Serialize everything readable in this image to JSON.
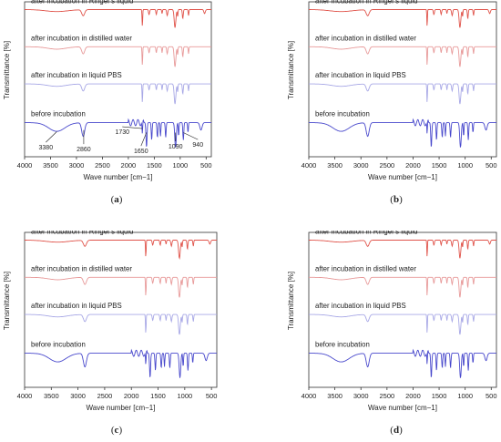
{
  "colors": {
    "ringer": "#e0534a",
    "water": "#e89a9a",
    "pbs": "#a8a8e6",
    "before": "#4848cc",
    "axis": "#333333",
    "text": "#222222"
  },
  "chart_data": [
    {
      "type": "line",
      "panel": "a",
      "caption": "(a)",
      "xlabel": "Wave number [cm−1]",
      "ylabel": "Transmittance [%]",
      "xlim": [
        4000,
        400
      ],
      "x_reversed": true,
      "xticks": [
        "4000",
        "3500",
        "3000",
        "2500",
        "2000",
        "1500",
        "1000",
        "500"
      ],
      "series": [
        {
          "name": "after incubation in Ringer's liquid",
          "color": "#e0534a",
          "offset": 0.86
        },
        {
          "name": "after incubation in distilled water",
          "color": "#e89a9a",
          "offset": 0.62
        },
        {
          "name": "after incubation in liquid PBS",
          "color": "#a8a8e6",
          "offset": 0.38
        },
        {
          "name": "before incubation",
          "color": "#4848cc",
          "offset": 0.13
        }
      ],
      "annotations": [
        {
          "text": "3380",
          "x": 3380
        },
        {
          "text": "2860",
          "x": 2860
        },
        {
          "text": "1730",
          "x": 1730
        },
        {
          "text": "1650",
          "x": 1650
        },
        {
          "text": "1090",
          "x": 1090
        },
        {
          "text": "940",
          "x": 940
        }
      ]
    },
    {
      "type": "line",
      "panel": "b",
      "caption": "(b)",
      "xlabel": "Wave number [cm−1]",
      "ylabel": "Transmittance [%]",
      "xlim": [
        4000,
        400
      ],
      "x_reversed": true,
      "xticks": [
        "4000",
        "3500",
        "3000",
        "2500",
        "2000",
        "1500",
        "1000",
        "500"
      ],
      "series": [
        {
          "name": "after incubation in Ringer's liquid",
          "color": "#e0534a",
          "offset": 0.86
        },
        {
          "name": "after incubation in distilled water",
          "color": "#e89a9a",
          "offset": 0.62
        },
        {
          "name": "after incubation in liquid PBS",
          "color": "#a8a8e6",
          "offset": 0.38
        },
        {
          "name": "before incubation",
          "color": "#4848cc",
          "offset": 0.13
        }
      ],
      "annotations": []
    },
    {
      "type": "line",
      "panel": "c",
      "caption": "(c)",
      "xlabel": "Wave number [cm−1]",
      "ylabel": "Transmittance [%]",
      "xlim": [
        4000,
        400
      ],
      "x_reversed": true,
      "xticks": [
        "4000",
        "3500",
        "3000",
        "2500",
        "2000",
        "1500",
        "1000",
        "500"
      ],
      "series": [
        {
          "name": "after incubation in Ringer's liquid",
          "color": "#e0534a",
          "offset": 0.86
        },
        {
          "name": "after incubation in distilled water",
          "color": "#e89a9a",
          "offset": 0.62
        },
        {
          "name": "after incubation in liquid PBS",
          "color": "#a8a8e6",
          "offset": 0.38
        },
        {
          "name": "before incubation",
          "color": "#4848cc",
          "offset": 0.13
        }
      ],
      "annotations": []
    },
    {
      "type": "line",
      "panel": "d",
      "caption": "(d)",
      "xlabel": "Wave number [cm−1]",
      "ylabel": "Transmittance [%]",
      "xlim": [
        4000,
        400
      ],
      "x_reversed": true,
      "xticks": [
        "4000",
        "3500",
        "3000",
        "2500",
        "2000",
        "1500",
        "1000",
        "500"
      ],
      "series": [
        {
          "name": "after incubation in Ringer's liquid",
          "color": "#e0534a",
          "offset": 0.86
        },
        {
          "name": "after incubation in distilled water",
          "color": "#e89a9a",
          "offset": 0.62
        },
        {
          "name": "after incubation in liquid PBS",
          "color": "#a8a8e6",
          "offset": 0.38
        },
        {
          "name": "before incubation",
          "color": "#4848cc",
          "offset": 0.13
        }
      ],
      "annotations": []
    }
  ]
}
